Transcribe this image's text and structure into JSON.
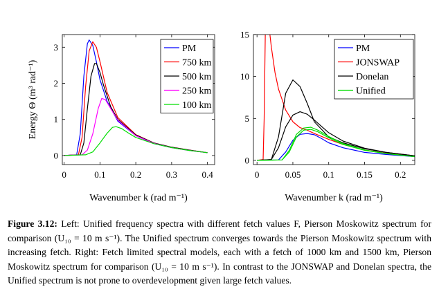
{
  "chart_data": [
    {
      "type": "line",
      "title": "",
      "xlabel": "Wavenumber k (rad m⁻¹)",
      "ylabel": "Energy Θ (m³ rad⁻¹)",
      "xlim": [
        -0.005,
        0.42
      ],
      "ylim": [
        -0.25,
        3.35
      ],
      "xticks": [
        0,
        0.1,
        0.2,
        0.3,
        0.4
      ],
      "xtick_labels": [
        "0",
        "0.1",
        "0.2",
        "0.3",
        "0.4"
      ],
      "yticks": [
        0,
        1,
        2,
        3
      ],
      "ytick_labels": [
        "0",
        "1",
        "2",
        "3"
      ],
      "grid": false,
      "legend_position": "top-right",
      "series": [
        {
          "name": "PM",
          "color": "#0000ff",
          "x": [
            0.0,
            0.035,
            0.045,
            0.055,
            0.065,
            0.07,
            0.08,
            0.09,
            0.1,
            0.12,
            0.15,
            0.2,
            0.25,
            0.3,
            0.35,
            0.4
          ],
          "y": [
            0.0,
            0.02,
            0.6,
            2.2,
            3.1,
            3.2,
            3.05,
            2.6,
            2.1,
            1.5,
            0.95,
            0.55,
            0.33,
            0.22,
            0.14,
            0.08
          ]
        },
        {
          "name": "750 km",
          "color": "#ff0000",
          "x": [
            0.0,
            0.04,
            0.05,
            0.06,
            0.07,
            0.08,
            0.09,
            0.1,
            0.12,
            0.15,
            0.2,
            0.25,
            0.3,
            0.35,
            0.4
          ],
          "y": [
            0.0,
            0.02,
            0.5,
            1.9,
            2.9,
            3.15,
            3.0,
            2.6,
            1.75,
            1.05,
            0.58,
            0.35,
            0.23,
            0.15,
            0.08
          ]
        },
        {
          "name": "500 km",
          "color": "#000000",
          "x": [
            0.0,
            0.045,
            0.055,
            0.065,
            0.075,
            0.085,
            0.09,
            0.1,
            0.11,
            0.13,
            0.15,
            0.2,
            0.25,
            0.3,
            0.35,
            0.4
          ],
          "y": [
            0.0,
            0.02,
            0.35,
            1.3,
            2.2,
            2.55,
            2.55,
            2.3,
            1.95,
            1.35,
            1.0,
            0.57,
            0.35,
            0.23,
            0.15,
            0.08
          ]
        },
        {
          "name": "250 km",
          "color": "#ff00ff",
          "x": [
            0.0,
            0.05,
            0.065,
            0.08,
            0.095,
            0.105,
            0.115,
            0.13,
            0.15,
            0.2,
            0.25,
            0.3,
            0.35,
            0.4
          ],
          "y": [
            0.0,
            0.02,
            0.15,
            0.6,
            1.3,
            1.58,
            1.55,
            1.3,
            0.98,
            0.55,
            0.34,
            0.22,
            0.14,
            0.08
          ]
        },
        {
          "name": "100 km",
          "color": "#00dd00",
          "x": [
            0.0,
            0.06,
            0.08,
            0.1,
            0.12,
            0.135,
            0.145,
            0.16,
            0.18,
            0.2,
            0.25,
            0.3,
            0.35,
            0.4
          ],
          "y": [
            0.0,
            0.02,
            0.1,
            0.35,
            0.62,
            0.78,
            0.8,
            0.75,
            0.62,
            0.5,
            0.33,
            0.22,
            0.14,
            0.08
          ]
        }
      ]
    },
    {
      "type": "line",
      "title": "",
      "xlabel": "Wavenumber k (rad m⁻¹)",
      "ylabel": "",
      "xlim": [
        -0.005,
        0.22
      ],
      "ylim": [
        -0.5,
        15
      ],
      "xticks": [
        0,
        0.05,
        0.1,
        0.15,
        0.2
      ],
      "xtick_labels": [
        "0",
        "0.05",
        "0.1",
        "0.15",
        "0.2"
      ],
      "yticks": [
        0,
        5,
        10,
        15
      ],
      "ytick_labels": [
        "0",
        "5",
        "10",
        "15"
      ],
      "grid": false,
      "legend_position": "top-right",
      "series": [
        {
          "name": "PM",
          "color": "#0000ff",
          "x": [
            0.0,
            0.03,
            0.04,
            0.05,
            0.06,
            0.07,
            0.08,
            0.09,
            0.1,
            0.12,
            0.15,
            0.18,
            0.22
          ],
          "y": [
            0.0,
            0.05,
            1.0,
            2.4,
            3.1,
            3.2,
            3.05,
            2.6,
            2.1,
            1.5,
            0.95,
            0.7,
            0.45
          ]
        },
        {
          "name": "JONSWAP",
          "color": "#ff0000",
          "x": [
            0.0,
            0.0085,
            0.01,
            0.012,
            0.015,
            0.018,
            0.02,
            0.025,
            0.03,
            0.04,
            0.05,
            0.06,
            0.07,
            0.08,
            0.1,
            0.12,
            0.15,
            0.18,
            0.22
          ],
          "y": [
            0.0,
            0.1,
            5.0,
            18,
            18,
            15,
            13.5,
            10.5,
            8.5,
            6.0,
            4.6,
            3.9,
            3.6,
            3.2,
            2.5,
            1.9,
            1.25,
            0.85,
            0.52
          ]
        },
        {
          "name": "Donelan",
          "color": "#000000",
          "x": [
            0.0,
            0.02,
            0.03,
            0.04,
            0.05,
            0.06,
            0.07,
            0.08,
            0.1,
            0.12,
            0.15,
            0.18,
            0.22
          ],
          "y": [
            0.0,
            0.1,
            2.8,
            8.0,
            9.6,
            8.8,
            6.8,
            4.6,
            2.8,
            2.1,
            1.4,
            0.95,
            0.55
          ]
        },
        {
          "name": "",
          "color": "#000000",
          "x": [
            0.0,
            0.02,
            0.03,
            0.04,
            0.05,
            0.06,
            0.07,
            0.08,
            0.1,
            0.12,
            0.15,
            0.18,
            0.22
          ],
          "y": [
            0.0,
            0.1,
            1.5,
            4.0,
            5.4,
            5.8,
            5.5,
            4.8,
            3.3,
            2.3,
            1.45,
            0.95,
            0.55
          ]
        },
        {
          "name": "Unified",
          "color": "#00dd00",
          "x": [
            0.0,
            0.035,
            0.045,
            0.055,
            0.065,
            0.075,
            0.085,
            0.1,
            0.12,
            0.15,
            0.18,
            0.22
          ],
          "y": [
            0.0,
            0.05,
            1.0,
            2.8,
            3.6,
            3.7,
            3.4,
            2.7,
            1.9,
            1.2,
            0.8,
            0.45
          ]
        },
        {
          "name": "",
          "color": "#00dd00",
          "x": [
            0.0,
            0.035,
            0.045,
            0.055,
            0.065,
            0.075,
            0.085,
            0.1,
            0.12,
            0.15,
            0.18,
            0.22
          ],
          "y": [
            0.0,
            0.05,
            1.2,
            3.1,
            3.85,
            3.95,
            3.6,
            2.85,
            2.0,
            1.25,
            0.82,
            0.45
          ]
        }
      ]
    }
  ],
  "caption": {
    "label": "Figure 3.12:",
    "text": " Left: Unified frequency spectra with different fetch values F, Pierson Moskowitz spectrum for comparison (U₁₀ = 10 m s⁻¹). The Unified spectrum converges towards the Pierson Moskowitz spectrum with increasing fetch. Right: Fetch limited spectral models, each with a fetch of 1000 km and 1500 km, Pierson Moskowitz spectrum for comparison (U₁₀ = 10 m s⁻¹). In contrast to the JONSWAP and Donelan spectra, the Unified spectrum is not prone to overdevelopment given large fetch values."
  }
}
